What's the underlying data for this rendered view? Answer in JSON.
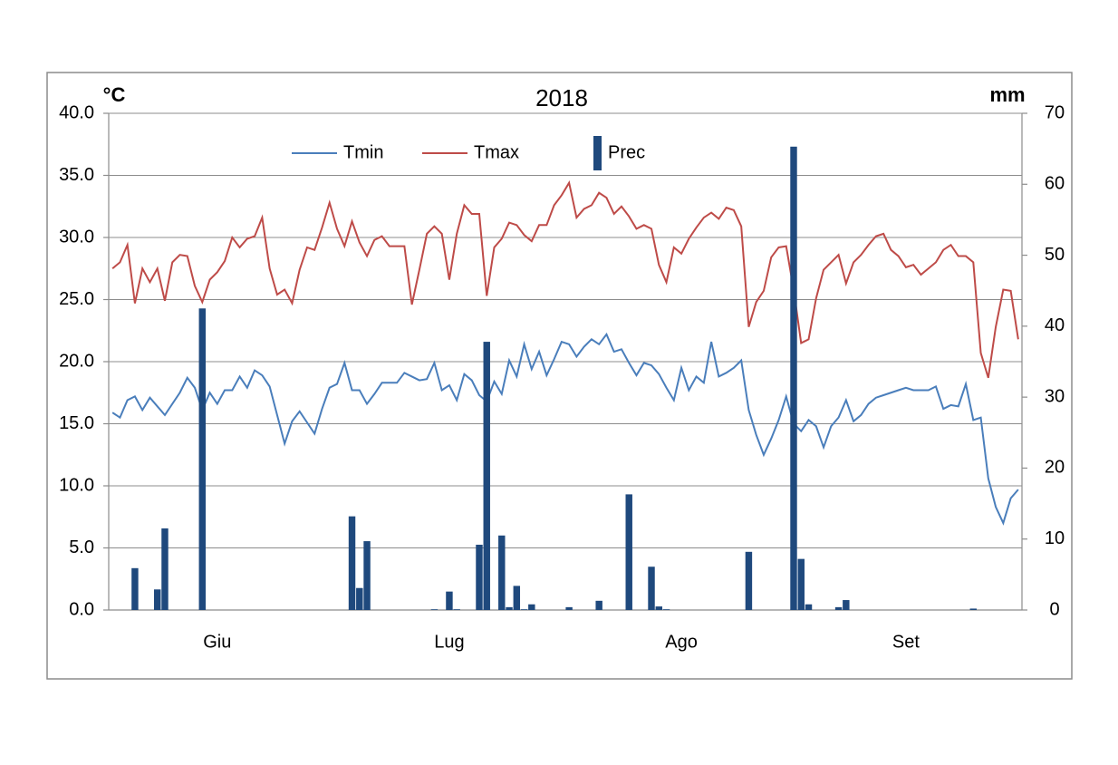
{
  "chart_data": {
    "type": "combo",
    "title": "2018",
    "y_label": "°C",
    "y2_label": "mm",
    "categories": [
      null,
      null,
      null,
      null,
      null,
      null,
      null,
      null,
      null,
      null,
      null,
      null,
      null,
      null,
      "Giu",
      null,
      null,
      null,
      null,
      null,
      null,
      null,
      null,
      null,
      null,
      null,
      null,
      null,
      null,
      null,
      null,
      null,
      null,
      null,
      null,
      null,
      null,
      null,
      null,
      null,
      null,
      null,
      null,
      null,
      null,
      "Lug",
      null,
      null,
      null,
      null,
      null,
      null,
      null,
      null,
      null,
      null,
      null,
      null,
      null,
      null,
      null,
      null,
      null,
      null,
      null,
      null,
      null,
      null,
      null,
      null,
      null,
      null,
      null,
      null,
      null,
      null,
      "Ago",
      null,
      null,
      null,
      null,
      null,
      null,
      null,
      null,
      null,
      null,
      null,
      null,
      null,
      null,
      null,
      null,
      null,
      null,
      null,
      null,
      null,
      null,
      null,
      null,
      null,
      null,
      null,
      null,
      null,
      "Set",
      null,
      null,
      null,
      null,
      null,
      null,
      null,
      null,
      null,
      null,
      null,
      null,
      null,
      null,
      null
    ],
    "series": [
      {
        "name": "Tmin",
        "type": "line",
        "color": "#4a7ebb",
        "values": [
          15.9,
          15.5,
          16.9,
          17.2,
          16.1,
          17.1,
          16.4,
          15.7,
          16.6,
          17.5,
          18.7,
          17.9,
          16.1,
          17.5,
          16.6,
          17.7,
          17.7,
          18.8,
          17.9,
          19.3,
          18.9,
          18.0,
          15.7,
          13.4,
          15.2,
          16.0,
          15.1,
          14.2,
          16.2,
          17.9,
          18.2,
          19.9,
          17.7,
          17.7,
          16.6,
          17.4,
          18.3,
          18.3,
          18.3,
          19.1,
          18.8,
          18.5,
          18.6,
          19.9,
          17.7,
          18.1,
          16.9,
          19.0,
          18.5,
          17.3,
          16.8,
          18.4,
          17.4,
          20.1,
          18.8,
          21.4,
          19.4,
          20.8,
          18.9,
          20.2,
          21.6,
          21.4,
          20.4,
          21.2,
          21.8,
          21.4,
          22.2,
          20.8,
          21.0,
          19.9,
          18.9,
          19.9,
          19.7,
          19.0,
          17.9,
          16.9,
          19.5,
          17.7,
          18.8,
          18.3,
          21.6,
          18.8,
          19.1,
          19.5,
          20.1,
          16.1,
          14.1,
          12.5,
          13.8,
          15.3,
          17.2,
          15.0,
          14.4,
          15.3,
          14.8,
          13.1,
          14.8,
          15.5,
          16.9,
          15.2,
          15.7,
          16.6,
          17.1,
          17.3,
          17.5,
          17.7,
          17.9,
          17.7,
          17.7,
          17.7,
          18.0,
          16.2,
          16.5,
          16.4,
          18.2,
          15.3,
          15.5,
          10.6,
          8.3,
          7.0,
          9.0,
          9.7
        ]
      },
      {
        "name": "Tmax",
        "type": "line",
        "color": "#be4b48",
        "values": [
          27.5,
          28.0,
          29.4,
          24.7,
          27.5,
          26.4,
          27.5,
          24.9,
          28.0,
          28.6,
          28.5,
          26.1,
          24.8,
          26.6,
          27.2,
          28.1,
          30.0,
          29.2,
          29.9,
          30.1,
          31.6,
          27.5,
          25.4,
          25.8,
          24.7,
          27.4,
          29.2,
          29.0,
          30.8,
          32.8,
          30.7,
          29.3,
          31.3,
          29.6,
          28.5,
          29.8,
          30.1,
          29.3,
          29.3,
          29.3,
          24.6,
          27.4,
          30.3,
          30.9,
          30.3,
          26.6,
          30.3,
          32.6,
          31.9,
          31.9,
          25.3,
          29.2,
          29.9,
          31.2,
          31.0,
          30.2,
          29.7,
          31.0,
          31.0,
          32.6,
          33.4,
          34.4,
          31.6,
          32.3,
          32.6,
          33.6,
          33.2,
          31.9,
          32.5,
          31.7,
          30.7,
          31.0,
          30.7,
          27.8,
          26.4,
          29.2,
          28.7,
          29.9,
          30.8,
          31.6,
          32.0,
          31.5,
          32.4,
          32.2,
          30.9,
          22.8,
          24.8,
          25.7,
          28.4,
          29.2,
          29.3,
          25.8,
          21.5,
          21.8,
          25.1,
          27.4,
          28.0,
          28.6,
          26.3,
          28.0,
          28.6,
          29.4,
          30.1,
          30.3,
          29.0,
          28.5,
          27.6,
          27.8,
          27.0,
          27.5,
          28.0,
          29.0,
          29.4,
          28.5,
          28.5,
          28.0,
          20.7,
          18.7,
          22.8,
          25.8,
          25.7,
          21.8
        ]
      },
      {
        "name": "Prec",
        "type": "bar",
        "axis": "y2",
        "color": "#1f497d",
        "values": [
          0,
          0,
          0,
          5.9,
          0,
          0,
          2.9,
          11.5,
          0,
          0,
          0,
          0,
          42.5,
          0,
          0,
          0,
          0,
          0,
          0,
          0,
          0,
          0,
          0,
          0,
          0,
          0,
          0,
          0,
          0,
          0,
          0,
          0,
          13.2,
          3.1,
          9.7,
          0,
          0,
          0,
          0,
          0,
          0,
          0,
          0,
          0.1,
          0,
          2.6,
          0.1,
          0,
          0,
          9.2,
          37.8,
          0,
          10.5,
          0.4,
          3.4,
          0.1,
          0.8,
          0,
          0,
          0,
          0,
          0.4,
          0,
          0,
          0,
          1.3,
          0,
          0,
          0,
          16.3,
          0,
          0,
          6.1,
          0.5,
          0.1,
          0,
          0,
          0,
          0,
          0,
          0,
          0,
          0,
          0,
          0,
          8.2,
          0,
          0,
          0,
          0,
          0,
          65.3,
          7.2,
          0.8,
          0,
          0,
          0,
          0.4,
          1.4,
          0,
          0,
          0,
          0,
          0,
          0,
          0,
          0,
          0,
          0,
          0,
          0,
          0,
          0,
          0,
          0,
          0.2,
          0,
          0,
          0,
          0,
          0,
          0
        ]
      }
    ],
    "ylim": [
      0,
      40
    ],
    "yticks": [
      {
        "value": 0,
        "label": "0.0"
      },
      {
        "value": 5,
        "label": "5.0"
      },
      {
        "value": 10,
        "label": "10.0"
      },
      {
        "value": 15,
        "label": "15.0"
      },
      {
        "value": 20,
        "label": "20.0"
      },
      {
        "value": 25,
        "label": "25.0"
      },
      {
        "value": 30,
        "label": "30.0"
      },
      {
        "value": 35,
        "label": "35.0"
      },
      {
        "value": 40,
        "label": "40.0"
      }
    ],
    "y2lim": [
      0,
      70
    ],
    "y2ticks": [
      0,
      10,
      20,
      30,
      40,
      50,
      60,
      70
    ],
    "grid": true
  }
}
